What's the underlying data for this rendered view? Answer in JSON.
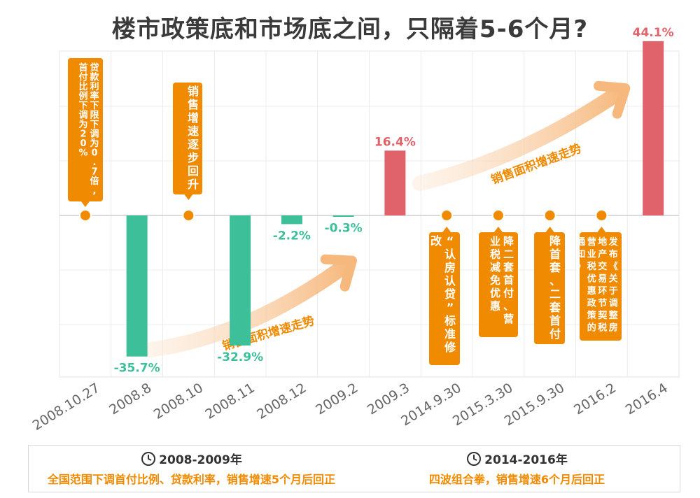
{
  "title": "楼市政策底和市场底之间，只隔着5-6个月?",
  "chart_data": {
    "type": "bar",
    "categories": [
      "2008.10.27",
      "2008.8",
      "2008.10",
      "2008.11",
      "2008.12",
      "2009.2",
      "2009.3",
      "2014.9.30",
      "2015.3.30",
      "2015.9.30",
      "2016.2",
      "2016.4"
    ],
    "values": [
      null,
      -35.7,
      null,
      -32.9,
      -2.2,
      -0.3,
      16.4,
      null,
      null,
      null,
      null,
      44.1
    ],
    "value_labels": [
      "",
      "-35.7%",
      "",
      "-32.9%",
      "-2.2%",
      "-0.3%",
      "16.4%",
      "",
      "",
      "",
      "",
      "44.1%"
    ],
    "ylim": [
      -50,
      50
    ],
    "grid": true,
    "colors": {
      "positive": "#e0636b",
      "negative": "#3dbf99",
      "callout": "#f08a00",
      "arrow": "#f8c89a"
    },
    "policy_callouts": [
      {
        "category_index": 0,
        "text": "贷款利率下限下调为0.7倍,首付比例下调为20%",
        "position": "above"
      },
      {
        "category_index": 2,
        "text": "销售增速逐步回升",
        "position": "above"
      },
      {
        "category_index": 7,
        "text": "“认房认贷”标准修改",
        "position": "below"
      },
      {
        "category_index": 8,
        "text": "降二套首付、营业税减免优惠",
        "position": "below"
      },
      {
        "category_index": 9,
        "text": "降首套、二套首付",
        "position": "below"
      },
      {
        "category_index": 10,
        "text": "发布《关于调整房地产交易环节契税营业税优惠政策的通知》",
        "position": "below"
      }
    ],
    "trend_arrows": [
      {
        "label": "销售面积增速走势",
        "from": 1,
        "to": 5
      },
      {
        "label": "销售面积增速走势",
        "from": 7,
        "to": 10
      }
    ]
  },
  "footer": [
    {
      "period": "2008-2009年",
      "description": "全国范围下调首付比例、贷款利率，销售增速5个月后回正",
      "icon": "clock-icon"
    },
    {
      "period": "2014-2016年",
      "description": "四波组合拳，销售增速6个月后回正",
      "icon": "clock-icon"
    }
  ]
}
